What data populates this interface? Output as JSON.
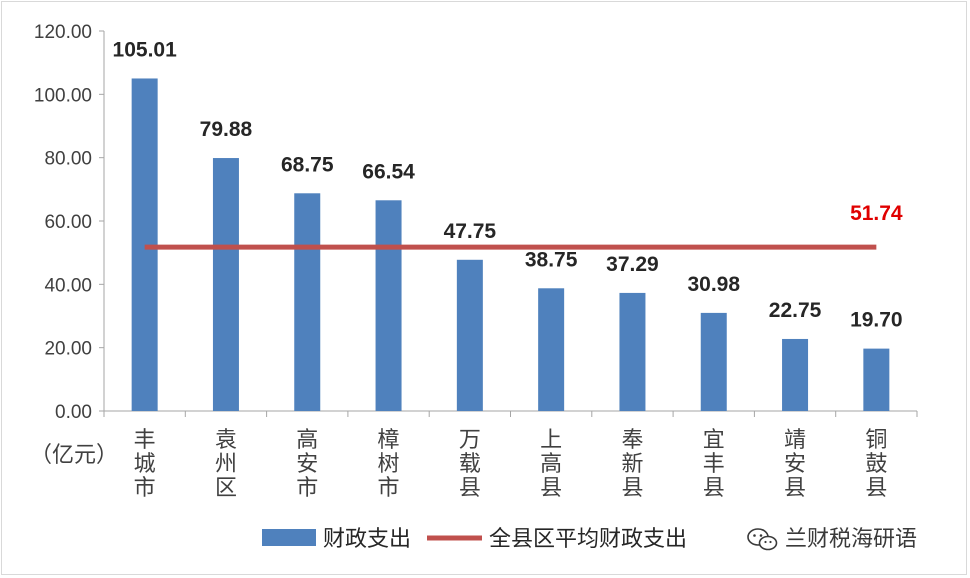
{
  "chart_data": {
    "type": "bar",
    "unit_label": "（亿元）",
    "categories": [
      "丰城市",
      "袁州区",
      "高安市",
      "樟树市",
      "万载县",
      "上高县",
      "奉新县",
      "宜丰县",
      "靖安县",
      "铜鼓县"
    ],
    "series": [
      {
        "name": "财政支出",
        "type": "bar",
        "color": "#4f81bd",
        "values": [
          105.01,
          79.88,
          68.75,
          66.54,
          47.75,
          38.75,
          37.29,
          30.98,
          22.75,
          19.7
        ],
        "labels": [
          "105.01",
          "79.88",
          "68.75",
          "66.54",
          "47.75",
          "38.75",
          "37.29",
          "30.98",
          "22.75",
          "19.70"
        ]
      },
      {
        "name": "全县区平均财政支出",
        "type": "line",
        "color": "#c0504d",
        "value": 51.74,
        "label": "51.74",
        "label_color": "#e00000"
      }
    ],
    "ylim": [
      0,
      120
    ],
    "yticks": [
      "0.00",
      "20.00",
      "40.00",
      "60.00",
      "80.00",
      "100.00",
      "120.00"
    ],
    "grid": false,
    "legend_position": "bottom"
  },
  "watermark": {
    "icon": "wechat-icon",
    "text": "兰财税海研语"
  }
}
